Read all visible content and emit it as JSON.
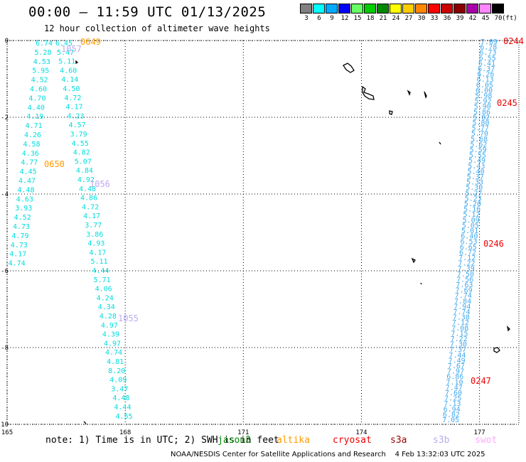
{
  "header": {
    "title": "00:00 – 11:59 UTC 01/13/2025",
    "subtitle": "12 hour collection of altimeter wave heights"
  },
  "color_scale": {
    "unit": "(ft)",
    "entries": [
      {
        "label": "3",
        "color": "#808080"
      },
      {
        "label": "6",
        "color": "#00ffff"
      },
      {
        "label": "9",
        "color": "#00aaff"
      },
      {
        "label": "12",
        "color": "#0000ff"
      },
      {
        "label": "15",
        "color": "#66ff66"
      },
      {
        "label": "18",
        "color": "#00cc00"
      },
      {
        "label": "21",
        "color": "#008800"
      },
      {
        "label": "24",
        "color": "#ffff00"
      },
      {
        "label": "27",
        "color": "#ffcc00"
      },
      {
        "label": "30",
        "color": "#ff8800"
      },
      {
        "label": "33",
        "color": "#ff0000"
      },
      {
        "label": "36",
        "color": "#cc0000"
      },
      {
        "label": "39",
        "color": "#880000"
      },
      {
        "label": "42",
        "color": "#aa00aa"
      },
      {
        "label": "45",
        "color": "#ff88ff"
      },
      {
        "label": "70",
        "color": "#000000"
      }
    ]
  },
  "map": {
    "lon_range": [
      165,
      178
    ],
    "lat_range": [
      -10,
      0
    ],
    "lon_ticks": [
      {
        "value": 165,
        "label": "165"
      },
      {
        "value": 168,
        "label": "168"
      },
      {
        "value": 171,
        "label": "171"
      },
      {
        "value": 174,
        "label": "174"
      },
      {
        "value": 177,
        "label": "177"
      }
    ],
    "lat_ticks": [
      {
        "value": 0,
        "label": "0"
      },
      {
        "value": -2,
        "label": "-2"
      },
      {
        "value": -4,
        "label": "-4"
      },
      {
        "value": -6,
        "label": "-6"
      },
      {
        "value": -8,
        "label": "-8"
      },
      {
        "value": -10,
        "label": "-10"
      }
    ],
    "grid": "dotted",
    "track_a": {
      "color": "#00dddd",
      "values": [
        "6.74",
        "5.28",
        "4.53",
        "5.95",
        "4.52",
        "4.60",
        "4.70",
        "4.40",
        "4.19",
        "4.71",
        "4.26",
        "4.58",
        "4.36",
        "4.77",
        "4.45",
        "4.47",
        "4.48",
        "4.63",
        "3.93",
        "4.52",
        "4.73",
        "4.79",
        "4.73",
        "4.17",
        "4.74"
      ]
    },
    "track_b": {
      "color": "#00dddd",
      "values": [
        "6.45",
        "5.47",
        "5.11",
        "4.60",
        "4.14",
        "4.50",
        "4.72",
        "4.17",
        "4.23",
        "4.57",
        "3.79",
        "4.55",
        "4.82",
        "5.07",
        "4.84",
        "4.92",
        "4.48",
        "4.86",
        "4.72",
        "4.17",
        "3.77",
        "3.86",
        "4.93",
        "4.17",
        "5.11",
        "4.44",
        "5.71",
        "4.06",
        "4.24",
        "4.34",
        "4.28",
        "4.97",
        "4.39",
        "4.97",
        "4.74",
        "4.81",
        "8.20",
        "4.09",
        "3.47",
        "4.48",
        "4.44",
        "4.55"
      ]
    },
    "track_c": {
      "color": "#44aaee",
      "values": [
        "7.09",
        "6.78",
        "6.73",
        "6.55",
        "6.41",
        "6.37",
        "6.26",
        "6.13",
        "6.05",
        "6.00",
        "5.98",
        "5.92",
        "5.90",
        "5.86",
        "5.82",
        "5.80",
        "5.77",
        "5.70",
        "5.68",
        "5.62",
        "5.59",
        "5.55",
        "5.49",
        "5.43",
        "5.40",
        "5.37",
        "5.33",
        "5.30",
        "5.27",
        "5.23",
        "5.20",
        "5.16",
        "5.12",
        "5.09",
        "5.05",
        "5.01",
        "6.40",
        "6.53",
        "6.65",
        "6.72",
        "7.12",
        "7.22",
        "7.39",
        "7.50",
        "7.56",
        "7.63",
        "7.69",
        "7.74",
        "7.84",
        "7.94",
        "7.74",
        "7.38",
        "7.12",
        "7.08",
        "7.15",
        "7.22",
        "7.30",
        "7.37",
        "7.44",
        "7.49",
        "7.67",
        "7.97",
        "6.86",
        "7.10",
        "7.47",
        "7.60",
        "7.25",
        "7.13",
        "6.94",
        "6.82",
        "7.05"
      ]
    },
    "time_labels": [
      {
        "text": "0649",
        "color": "#ff9900"
      },
      {
        "text": "1057",
        "color": "#bbaaee"
      },
      {
        "text": "0650",
        "color": "#ff9900"
      },
      {
        "text": "1056",
        "color": "#bbaaee"
      },
      {
        "text": "1055",
        "color": "#bbaaee"
      },
      {
        "text": "0244",
        "color": "#ee0000"
      },
      {
        "text": "0245",
        "color": "#ee0000"
      },
      {
        "text": "0246",
        "color": "#ee0000"
      },
      {
        "text": "0247",
        "color": "#ee0000"
      }
    ]
  },
  "footer": {
    "note": "note: 1) Time is in UTC; 2) SWH is in feet",
    "satellites": [
      {
        "name": "jason3",
        "color": "#008800"
      },
      {
        "name": "altika",
        "color": "#ff9900"
      },
      {
        "name": "cryosat",
        "color": "#ee0000"
      },
      {
        "name": "s3a",
        "color": "#990000"
      },
      {
        "name": "s3b",
        "color": "#bbaaee"
      },
      {
        "name": "swot",
        "color": "#ffaaff"
      }
    ],
    "credit": "NOAA/NESDIS Center for Satellite Applications and Research",
    "timestamp": "4 Feb 13:32:03 UTC 2025"
  }
}
